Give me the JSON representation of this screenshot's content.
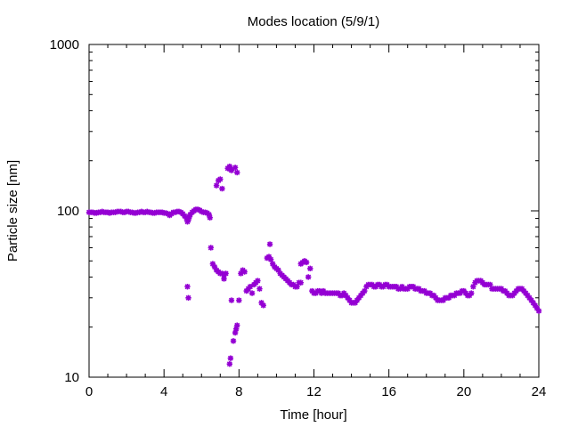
{
  "chart_data": {
    "type": "scatter",
    "title": "Modes location (5/9/1)",
    "xlabel": "Time [hour]",
    "ylabel": "Particle size [nm]",
    "xlim": [
      0,
      24
    ],
    "ylim": [
      10,
      1000
    ],
    "yscale": "log",
    "x_ticks": [
      0,
      4,
      8,
      12,
      16,
      20,
      24
    ],
    "x_tick_labels": [
      "0",
      "4",
      "8",
      "12",
      "16",
      "20",
      "24"
    ],
    "y_ticks": [
      10,
      100,
      1000
    ],
    "y_tick_labels": [
      "10",
      "100",
      "1000"
    ],
    "grid": false,
    "legend": "none",
    "marker_color": "#9400d3",
    "series": [
      {
        "points": [
          [
            0.0,
            98
          ],
          [
            0.1,
            98
          ],
          [
            0.2,
            98
          ],
          [
            0.3,
            97
          ],
          [
            0.4,
            97
          ],
          [
            0.5,
            98
          ],
          [
            0.6,
            98
          ],
          [
            0.7,
            99
          ],
          [
            0.8,
            98
          ],
          [
            0.9,
            98
          ],
          [
            1.0,
            98
          ],
          [
            1.1,
            97
          ],
          [
            1.2,
            98
          ],
          [
            1.3,
            98
          ],
          [
            1.4,
            98
          ],
          [
            1.5,
            99
          ],
          [
            1.6,
            99
          ],
          [
            1.7,
            99
          ],
          [
            1.8,
            98
          ],
          [
            1.9,
            98
          ],
          [
            2.0,
            99
          ],
          [
            2.1,
            99
          ],
          [
            2.2,
            98
          ],
          [
            2.3,
            98
          ],
          [
            2.4,
            97
          ],
          [
            2.5,
            97
          ],
          [
            2.6,
            98
          ],
          [
            2.7,
            98
          ],
          [
            2.8,
            99
          ],
          [
            2.9,
            98
          ],
          [
            3.0,
            98
          ],
          [
            3.1,
            99
          ],
          [
            3.2,
            98
          ],
          [
            3.3,
            98
          ],
          [
            3.4,
            97
          ],
          [
            3.5,
            97
          ],
          [
            3.6,
            98
          ],
          [
            3.7,
            98
          ],
          [
            3.8,
            98
          ],
          [
            3.9,
            98
          ],
          [
            4.0,
            97
          ],
          [
            4.1,
            97
          ],
          [
            4.2,
            96
          ],
          [
            4.3,
            94
          ],
          [
            4.4,
            96
          ],
          [
            4.5,
            98
          ],
          [
            4.6,
            98
          ],
          [
            4.7,
            99
          ],
          [
            4.8,
            99
          ],
          [
            4.9,
            98
          ],
          [
            5.0,
            96
          ],
          [
            5.1,
            93
          ],
          [
            5.2,
            90
          ],
          [
            5.25,
            86
          ],
          [
            5.3,
            88
          ],
          [
            5.35,
            92
          ],
          [
            5.4,
            95
          ],
          [
            5.5,
            98
          ],
          [
            5.6,
            100
          ],
          [
            5.7,
            102
          ],
          [
            5.8,
            102
          ],
          [
            5.9,
            101
          ],
          [
            6.0,
            99
          ],
          [
            6.1,
            98
          ],
          [
            6.2,
            98
          ],
          [
            6.3,
            97
          ],
          [
            6.4,
            95
          ],
          [
            6.45,
            91
          ],
          [
            5.25,
            35
          ],
          [
            5.3,
            30
          ],
          [
            6.5,
            60
          ],
          [
            6.6,
            48
          ],
          [
            6.7,
            46
          ],
          [
            6.8,
            44
          ],
          [
            6.9,
            43
          ],
          [
            7.0,
            42
          ],
          [
            7.1,
            42
          ],
          [
            7.2,
            41
          ],
          [
            7.3,
            42
          ],
          [
            7.2,
            39
          ],
          [
            6.8,
            142
          ],
          [
            6.9,
            152
          ],
          [
            7.0,
            155
          ],
          [
            7.1,
            136
          ],
          [
            7.4,
            180
          ],
          [
            7.5,
            185
          ],
          [
            7.55,
            178
          ],
          [
            7.6,
            175
          ],
          [
            7.8,
            182
          ],
          [
            7.9,
            170
          ],
          [
            7.5,
            12
          ],
          [
            7.55,
            13
          ],
          [
            7.6,
            29
          ],
          [
            7.7,
            16.5
          ],
          [
            7.8,
            18.5
          ],
          [
            7.85,
            19.5
          ],
          [
            7.9,
            20.5
          ],
          [
            8.0,
            29
          ],
          [
            8.1,
            42
          ],
          [
            8.2,
            44
          ],
          [
            8.3,
            43
          ],
          [
            8.4,
            33
          ],
          [
            8.5,
            34
          ],
          [
            8.6,
            35
          ],
          [
            8.7,
            32
          ],
          [
            8.8,
            36
          ],
          [
            8.9,
            37
          ],
          [
            9.0,
            38
          ],
          [
            9.1,
            34
          ],
          [
            9.2,
            28
          ],
          [
            9.3,
            27
          ],
          [
            9.5,
            52
          ],
          [
            9.6,
            53
          ],
          [
            9.7,
            51
          ],
          [
            9.65,
            63
          ],
          [
            9.8,
            48
          ],
          [
            9.9,
            46
          ],
          [
            10.0,
            45
          ],
          [
            10.1,
            44
          ],
          [
            10.2,
            42
          ],
          [
            10.3,
            41
          ],
          [
            10.4,
            40
          ],
          [
            10.5,
            39
          ],
          [
            10.6,
            38
          ],
          [
            10.7,
            37
          ],
          [
            10.8,
            36
          ],
          [
            10.9,
            36
          ],
          [
            11.0,
            35
          ],
          [
            11.1,
            35
          ],
          [
            11.2,
            37
          ],
          [
            11.3,
            37
          ],
          [
            11.3,
            48
          ],
          [
            11.4,
            49
          ],
          [
            11.5,
            50
          ],
          [
            11.6,
            49
          ],
          [
            11.7,
            40
          ],
          [
            11.8,
            45
          ],
          [
            11.9,
            33
          ],
          [
            12.0,
            32
          ],
          [
            12.1,
            32
          ],
          [
            12.2,
            33
          ],
          [
            12.3,
            33
          ],
          [
            12.4,
            32
          ],
          [
            12.5,
            33
          ],
          [
            12.6,
            32
          ],
          [
            12.7,
            32
          ],
          [
            12.8,
            32
          ],
          [
            12.9,
            32
          ],
          [
            13.0,
            32
          ],
          [
            13.1,
            32
          ],
          [
            13.2,
            32
          ],
          [
            13.3,
            32
          ],
          [
            13.4,
            31
          ],
          [
            13.5,
            31
          ],
          [
            13.6,
            32
          ],
          [
            13.7,
            31
          ],
          [
            13.8,
            30
          ],
          [
            13.9,
            29
          ],
          [
            14.0,
            28
          ],
          [
            14.1,
            28
          ],
          [
            14.2,
            28
          ],
          [
            14.3,
            29
          ],
          [
            14.4,
            30
          ],
          [
            14.5,
            31
          ],
          [
            14.6,
            32
          ],
          [
            14.7,
            33
          ],
          [
            14.8,
            35
          ],
          [
            14.9,
            36
          ],
          [
            15.0,
            36
          ],
          [
            15.1,
            36
          ],
          [
            15.2,
            35
          ],
          [
            15.3,
            35
          ],
          [
            15.4,
            36
          ],
          [
            15.5,
            36
          ],
          [
            15.6,
            35
          ],
          [
            15.7,
            35
          ],
          [
            15.8,
            36
          ],
          [
            15.9,
            36
          ],
          [
            16.0,
            35
          ],
          [
            16.1,
            35
          ],
          [
            16.2,
            35
          ],
          [
            16.3,
            35
          ],
          [
            16.4,
            35
          ],
          [
            16.5,
            34
          ],
          [
            16.6,
            34
          ],
          [
            16.7,
            35
          ],
          [
            16.8,
            34
          ],
          [
            16.9,
            34
          ],
          [
            17.0,
            34
          ],
          [
            17.1,
            35
          ],
          [
            17.2,
            35
          ],
          [
            17.3,
            35
          ],
          [
            17.4,
            34
          ],
          [
            17.5,
            34
          ],
          [
            17.6,
            34
          ],
          [
            17.7,
            33
          ],
          [
            17.8,
            33
          ],
          [
            17.9,
            33
          ],
          [
            18.0,
            32
          ],
          [
            18.1,
            32
          ],
          [
            18.2,
            32
          ],
          [
            18.3,
            31
          ],
          [
            18.4,
            31
          ],
          [
            18.5,
            30
          ],
          [
            18.6,
            29
          ],
          [
            18.7,
            29
          ],
          [
            18.8,
            29
          ],
          [
            18.9,
            29
          ],
          [
            19.0,
            30
          ],
          [
            19.1,
            30
          ],
          [
            19.2,
            30
          ],
          [
            19.3,
            31
          ],
          [
            19.4,
            31
          ],
          [
            19.5,
            31
          ],
          [
            19.6,
            32
          ],
          [
            19.7,
            32
          ],
          [
            19.8,
            32
          ],
          [
            19.9,
            33
          ],
          [
            20.0,
            33
          ],
          [
            20.1,
            32
          ],
          [
            20.2,
            31
          ],
          [
            20.3,
            31
          ],
          [
            20.4,
            32
          ],
          [
            20.5,
            35
          ],
          [
            20.6,
            37
          ],
          [
            20.7,
            38
          ],
          [
            20.8,
            38
          ],
          [
            20.9,
            38
          ],
          [
            21.0,
            37
          ],
          [
            21.1,
            36
          ],
          [
            21.2,
            36
          ],
          [
            21.3,
            36
          ],
          [
            21.4,
            36
          ],
          [
            21.5,
            34
          ],
          [
            21.6,
            34
          ],
          [
            21.7,
            34
          ],
          [
            21.8,
            34
          ],
          [
            21.9,
            34
          ],
          [
            22.0,
            34
          ],
          [
            22.1,
            33
          ],
          [
            22.2,
            33
          ],
          [
            22.3,
            32
          ],
          [
            22.4,
            31
          ],
          [
            22.5,
            31
          ],
          [
            22.6,
            31
          ],
          [
            22.7,
            32
          ],
          [
            22.8,
            33
          ],
          [
            22.9,
            34
          ],
          [
            23.0,
            34
          ],
          [
            23.1,
            34
          ],
          [
            23.2,
            33
          ],
          [
            23.3,
            32
          ],
          [
            23.4,
            31
          ],
          [
            23.5,
            30
          ],
          [
            23.6,
            29
          ],
          [
            23.7,
            28
          ],
          [
            23.8,
            27
          ],
          [
            23.9,
            26
          ],
          [
            24.0,
            25
          ]
        ]
      }
    ]
  }
}
